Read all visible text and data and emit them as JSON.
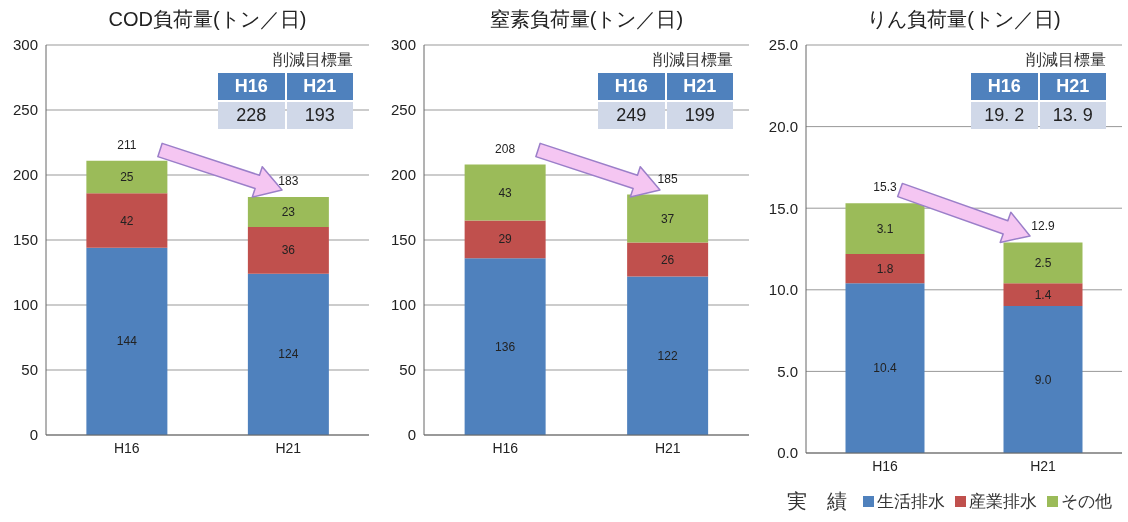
{
  "chart_data": [
    {
      "type": "bar",
      "title": "COD負荷量(トン／日)",
      "categories": [
        "H16",
        "H21"
      ],
      "stacked": true,
      "data_labels": true,
      "ylim": [
        0,
        300
      ],
      "yticks": [
        0,
        50,
        100,
        150,
        200,
        250,
        300
      ],
      "grid": "y",
      "totals": [
        "211",
        "183"
      ],
      "series": [
        {
          "color": "#4f81bd",
          "values": [
            144,
            124
          ]
        },
        {
          "color": "#c0504d",
          "values": [
            42,
            36
          ]
        },
        {
          "color": "#9bbb59",
          "values": [
            25,
            23
          ]
        }
      ],
      "annotations": [
        "削減目標量",
        "H16",
        "H21",
        "228",
        "193"
      ]
    },
    {
      "type": "bar",
      "title": "窒素負荷量(トン／日)",
      "categories": [
        "H16",
        "H21"
      ],
      "stacked": true,
      "data_labels": true,
      "ylim": [
        0,
        300
      ],
      "yticks": [
        0,
        50,
        100,
        150,
        200,
        250,
        300
      ],
      "grid": "y",
      "totals": [
        "208",
        "185"
      ],
      "series": [
        {
          "color": "#4f81bd",
          "values": [
            136,
            122
          ]
        },
        {
          "color": "#c0504d",
          "values": [
            29,
            26
          ]
        },
        {
          "color": "#9bbb59",
          "values": [
            43,
            37
          ]
        }
      ],
      "annotations": [
        "削減目標量",
        "H16",
        "H21",
        "249",
        "199"
      ]
    },
    {
      "type": "bar",
      "title": "りん負荷量(トン／日)",
      "categories": [
        "H16",
        "H21"
      ],
      "stacked": true,
      "ylim": [
        0,
        25
      ],
      "yticks": [
        {
          "value": 0,
          "label": "0.0"
        },
        {
          "value": 5,
          "label": "5.0"
        },
        {
          "value": 10,
          "label": "10.0"
        },
        {
          "value": 15,
          "label": "15.0"
        },
        {
          "value": 20,
          "label": "20.0"
        },
        {
          "value": 25,
          "label": "25.0"
        }
      ],
      "grid": "y",
      "totals": [
        "15.3",
        "12.9"
      ],
      "legend": "bottom",
      "legend_title": "実　績",
      "series": [
        {
          "name": "生活排水",
          "color": "#4f81bd",
          "values": [
            10.4,
            9.0
          ],
          "value_labels": [
            "10.4",
            "9.0"
          ]
        },
        {
          "name": "産業排水",
          "color": "#c0504d",
          "values": [
            1.8,
            1.4
          ],
          "value_labels": [
            "1.8",
            "1.4"
          ]
        },
        {
          "name": "その他",
          "color": "#9bbb59",
          "values": [
            3.1,
            2.5
          ],
          "value_labels": [
            "3.1",
            "2.5"
          ]
        }
      ],
      "annotations": [
        "削減目標量",
        "H16",
        "H21",
        "19. 2",
        "13. 9"
      ]
    }
  ]
}
